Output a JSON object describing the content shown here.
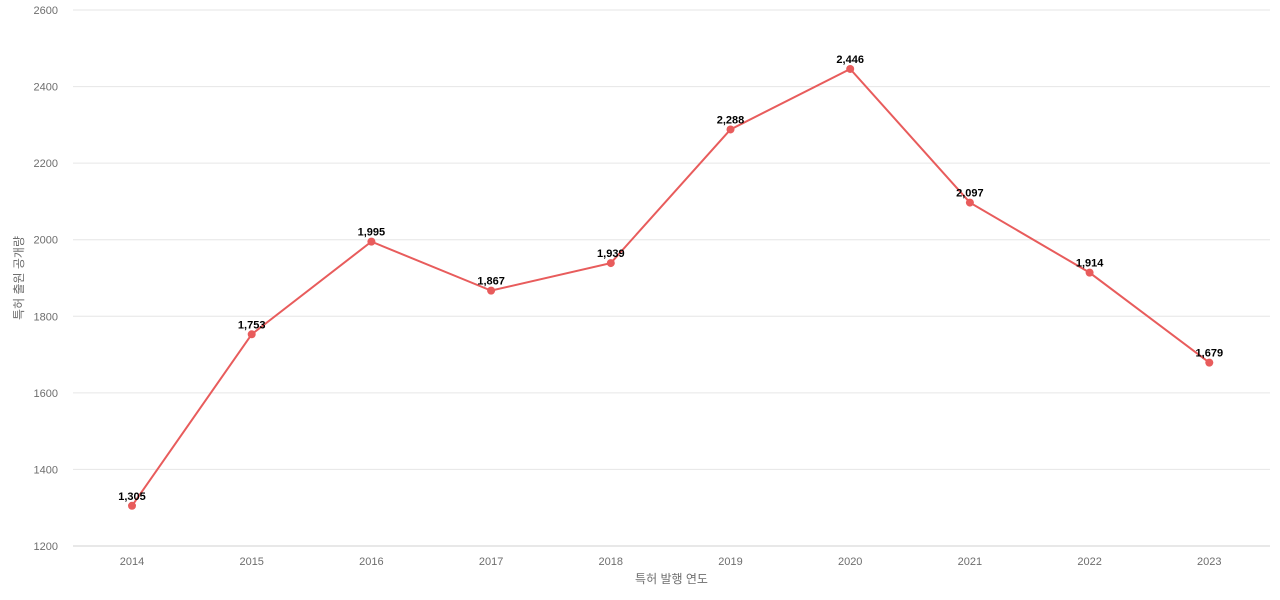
{
  "chart_data": {
    "type": "line",
    "categories": [
      "2014",
      "2015",
      "2016",
      "2017",
      "2018",
      "2019",
      "2020",
      "2021",
      "2022",
      "2023"
    ],
    "series": [
      {
        "values": [
          1305,
          1753,
          1995,
          1867,
          1939,
          2288,
          2446,
          2097,
          1914,
          1679
        ],
        "data_labels": [
          "1,305",
          "1,753",
          "1,995",
          "1,867",
          "1,939",
          "2,288",
          "2,446",
          "2,097",
          "1,914",
          "1,679"
        ]
      }
    ],
    "xlabel": "특허 발행 연도",
    "ylabel": "특허 출원 공개량",
    "ylim": [
      1200,
      2600
    ],
    "yticks": [
      "1200",
      "1400",
      "1600",
      "1800",
      "2000",
      "2200",
      "2400",
      "2600"
    ],
    "grid": true,
    "line_color": "#e85c5c"
  }
}
